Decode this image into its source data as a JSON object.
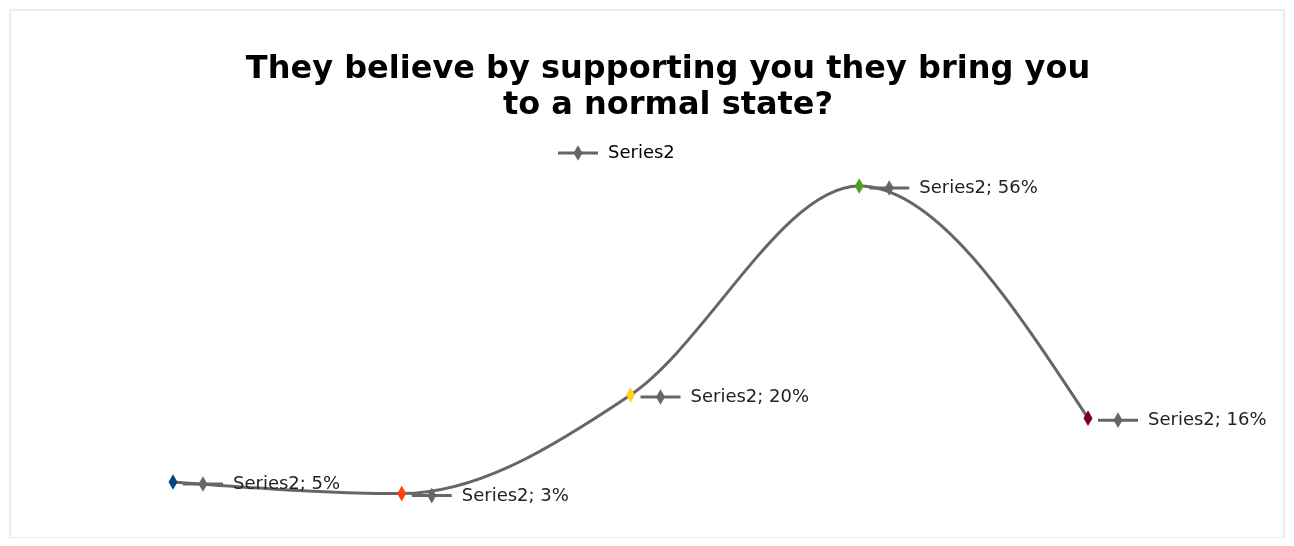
{
  "chart_data": {
    "type": "line",
    "title": "They believe by supporting you they bring you\nto a normal state?",
    "categories": [
      null,
      null,
      null,
      null,
      null
    ],
    "series": [
      {
        "name": "Series2",
        "color": "#666666",
        "colors": [
          "#004586",
          "#ff420e",
          "#ffd320",
          "#579d1c",
          "#7e0021"
        ],
        "values": [
          5,
          3,
          20,
          56,
          16
        ],
        "value_labels": [
          "Series2; 5%",
          "Series2; 3%",
          "Series2; 20%",
          "Series2; 56%",
          "Series2; 16%"
        ]
      }
    ],
    "marker": "diamond",
    "legend": "top"
  }
}
